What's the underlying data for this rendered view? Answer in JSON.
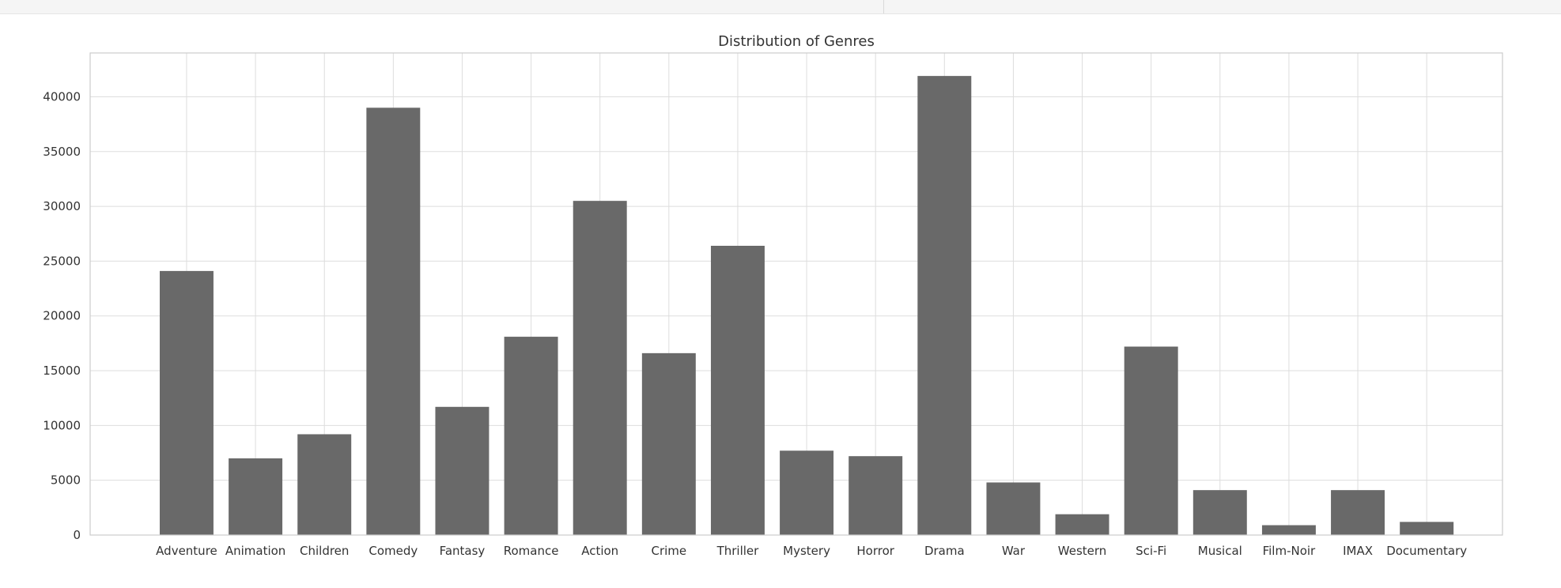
{
  "chart_data": {
    "type": "bar",
    "title": "Distribution of Genres",
    "xlabel": "",
    "ylabel": "",
    "categories": [
      "Adventure",
      "Animation",
      "Children",
      "Comedy",
      "Fantasy",
      "Romance",
      "Action",
      "Crime",
      "Thriller",
      "Mystery",
      "Horror",
      "Drama",
      "War",
      "Western",
      "Sci-Fi",
      "Musical",
      "Film-Noir",
      "IMAX",
      "Documentary"
    ],
    "values": [
      24100,
      7000,
      9200,
      39000,
      11700,
      18100,
      30500,
      16600,
      26400,
      7700,
      7200,
      41900,
      4800,
      1900,
      17200,
      4100,
      900,
      4100,
      1200
    ],
    "ylim": [
      0,
      44000
    ],
    "yticks": [
      0,
      5000,
      10000,
      15000,
      20000,
      25000,
      30000,
      35000,
      40000
    ],
    "grid": true,
    "bar_color": "#696969",
    "grid_color": "#dddddd",
    "axis_color": "#cccccc"
  }
}
